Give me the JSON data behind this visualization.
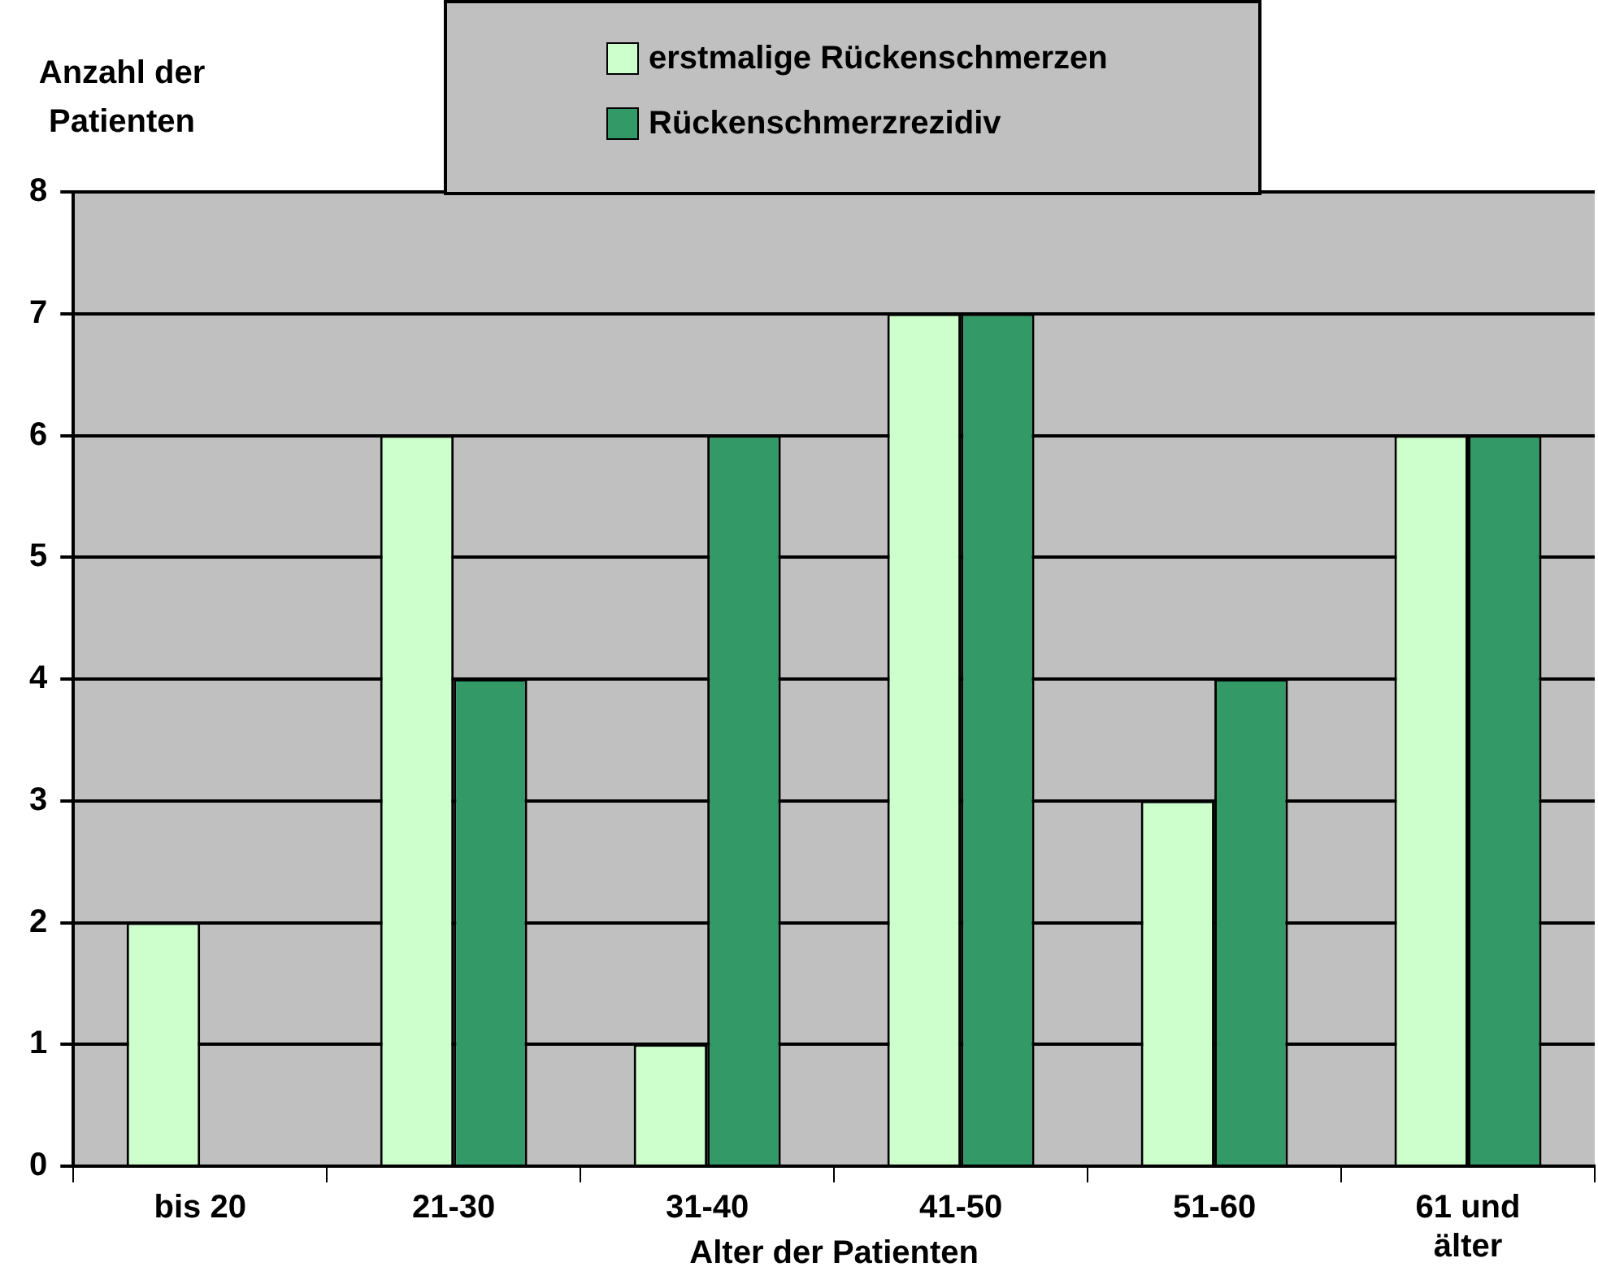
{
  "chart_data": {
    "type": "bar",
    "xlabel": "Alter der Patienten",
    "ylabel": "Anzahl der Patienten",
    "categories": [
      "bis 20",
      "21-30",
      "31-40",
      "41-50",
      "51-60",
      "61 und älter"
    ],
    "series": [
      {
        "name": "erstmalige Rückenschmerzen",
        "color": "#ccffcc",
        "values": [
          2,
          6,
          1,
          7,
          3,
          6
        ]
      },
      {
        "name": "Rückenschmerzrezidiv",
        "color": "#339966",
        "values": [
          0,
          4,
          6,
          7,
          4,
          6
        ]
      }
    ],
    "ylim": [
      0,
      8
    ],
    "yticks": [
      0,
      1,
      2,
      3,
      4,
      5,
      6,
      7,
      8
    ],
    "grid": "y",
    "legend": "top"
  }
}
